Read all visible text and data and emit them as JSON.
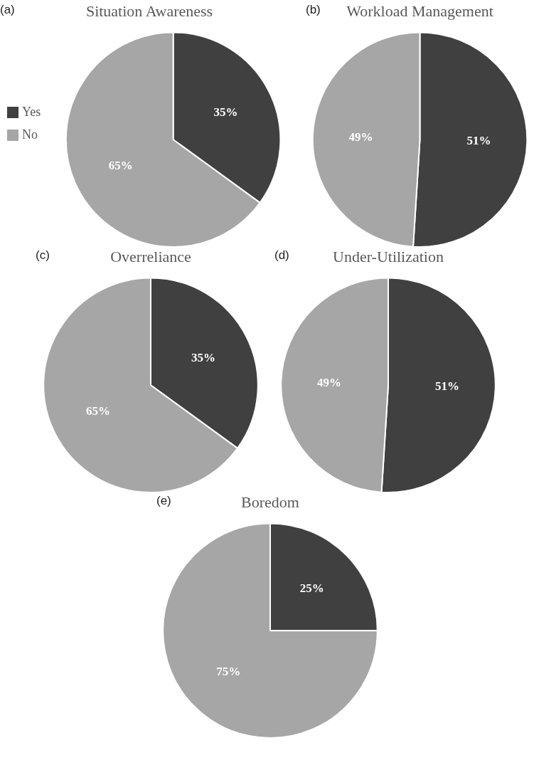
{
  "chart_data": [
    {
      "type": "pie",
      "title": "Situation Awareness",
      "annotations": [
        "(a)"
      ],
      "categories": [
        "Yes",
        "No"
      ],
      "values": [
        35,
        65
      ],
      "value_labels": [
        "35%",
        "65%"
      ],
      "colors": [
        "#404040",
        "#a6a6a6"
      ],
      "legend": "left"
    },
    {
      "type": "pie",
      "title": "Workload Management",
      "annotations": [
        "(b)"
      ],
      "categories": [
        null,
        null
      ],
      "values": [
        51,
        49
      ],
      "value_labels": [
        "51%",
        "49%"
      ],
      "colors": [
        "#404040",
        "#a6a6a6"
      ]
    },
    {
      "type": "pie",
      "title": "Overreliance",
      "annotations": [
        "(c)"
      ],
      "categories": [
        null,
        null
      ],
      "values": [
        35,
        65
      ],
      "value_labels": [
        "35%",
        "65%"
      ],
      "colors": [
        "#404040",
        "#a6a6a6"
      ]
    },
    {
      "type": "pie",
      "title": "Under-Utilization",
      "annotations": [
        "(d)"
      ],
      "categories": [
        null,
        null
      ],
      "values": [
        51,
        49
      ],
      "value_labels": [
        "51%",
        "49%"
      ],
      "colors": [
        "#404040",
        "#a6a6a6"
      ]
    },
    {
      "type": "pie",
      "title": "Boredom",
      "annotations": [
        "(e)"
      ],
      "categories": [
        null,
        null
      ],
      "values": [
        25,
        75
      ],
      "value_labels": [
        "25%",
        "75%"
      ],
      "colors": [
        "#404040",
        "#a6a6a6"
      ]
    }
  ]
}
